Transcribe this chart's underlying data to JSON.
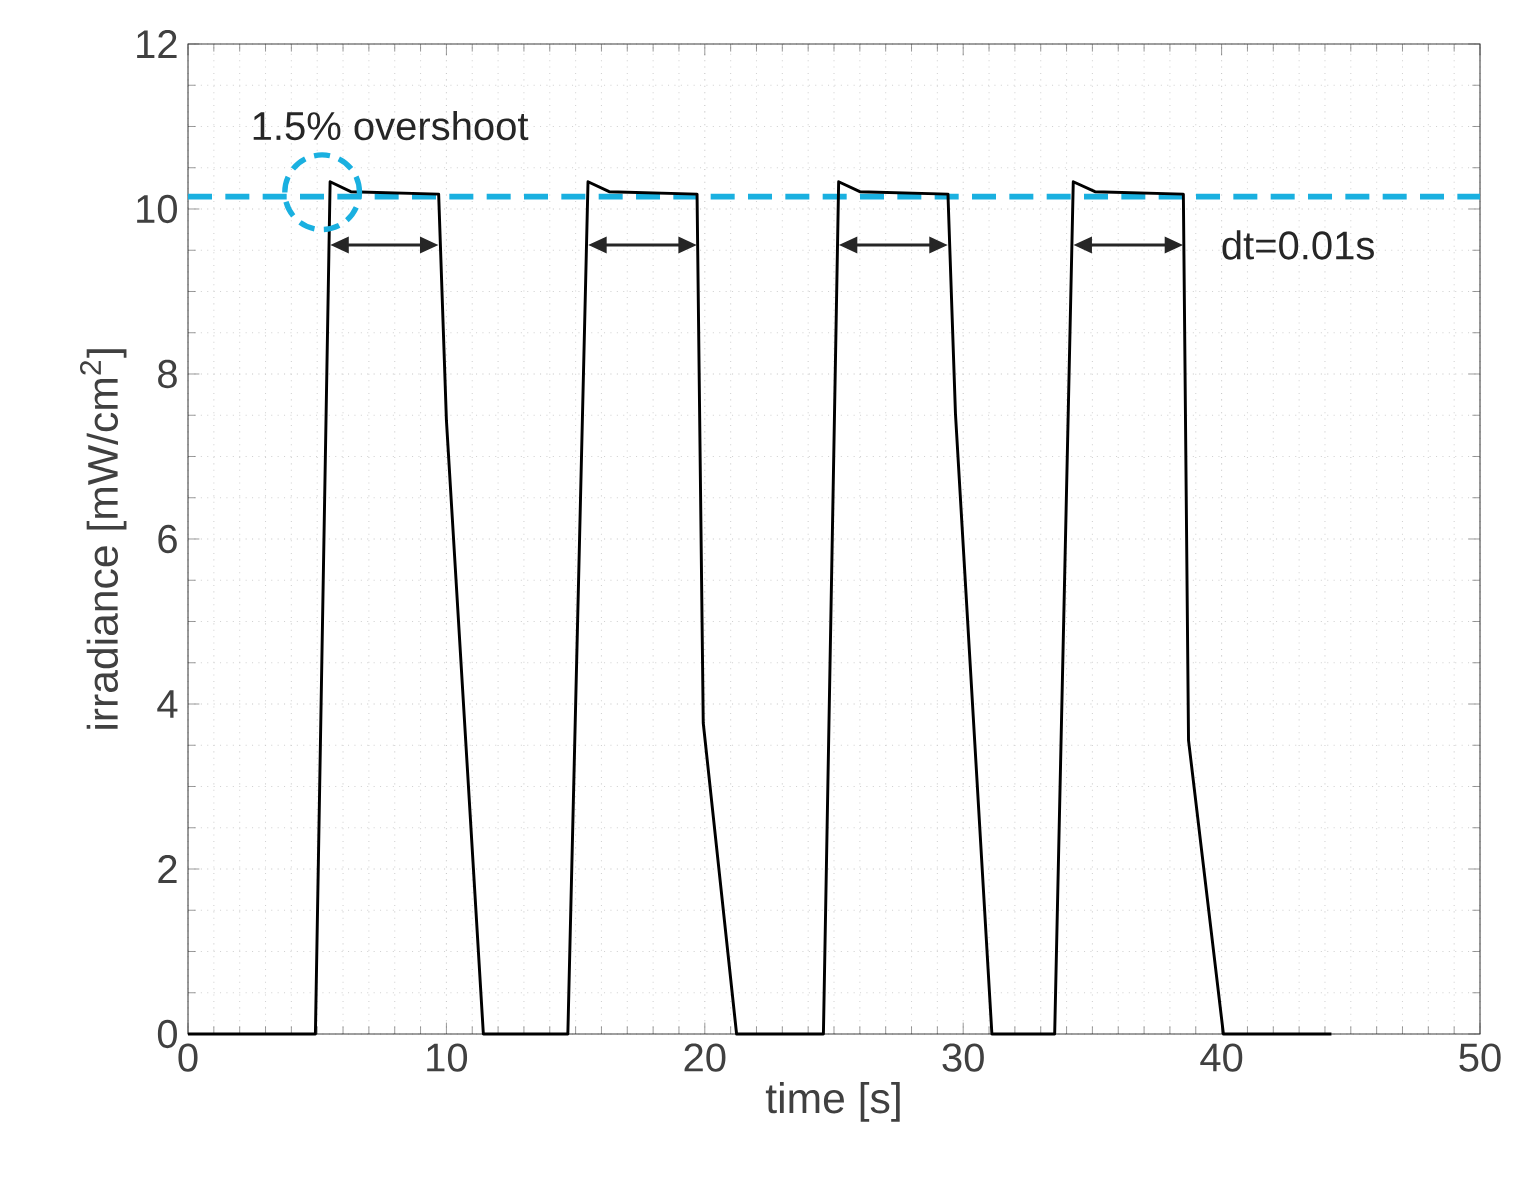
{
  "chart_data": {
    "type": "line",
    "xlabel": "time [s]",
    "ylabel": "irradiance [mW/cm$^{2}$]",
    "xlim": [
      0,
      50
    ],
    "ylim": [
      0,
      12
    ],
    "xticks": [
      0,
      10,
      20,
      30,
      40,
      50
    ],
    "yticks": [
      0,
      2,
      4,
      6,
      8,
      10,
      12
    ],
    "grid": true,
    "x": [
      0,
      4.93,
      5.5,
      6.3,
      9.7,
      10.0,
      11.43,
      14.7,
      15.48,
      16.3,
      19.7,
      19.94,
      21.23,
      24.59,
      25.18,
      26.0,
      29.41,
      29.7,
      31.11,
      33.54,
      34.26,
      35.1,
      38.52,
      38.72,
      40.07,
      44.25
    ],
    "series": [
      {
        "color": "#000000",
        "values": [
          0,
          0,
          10.33,
          10.21,
          10.18,
          7.44,
          0,
          0,
          10.33,
          10.21,
          10.18,
          3.77,
          0,
          0,
          10.33,
          10.21,
          10.18,
          7.52,
          0,
          0,
          10.33,
          10.21,
          10.18,
          3.56,
          0,
          0
        ]
      }
    ],
    "ref_lines": [
      {
        "axis": "y",
        "value": 10.15,
        "color": "#1ab0e0",
        "line_style": "dashed"
      }
    ],
    "annotations": [
      {
        "text": "1.5% overshoot",
        "x": 5.5,
        "y": 10.3
      },
      "dt=0.01s"
    ]
  }
}
